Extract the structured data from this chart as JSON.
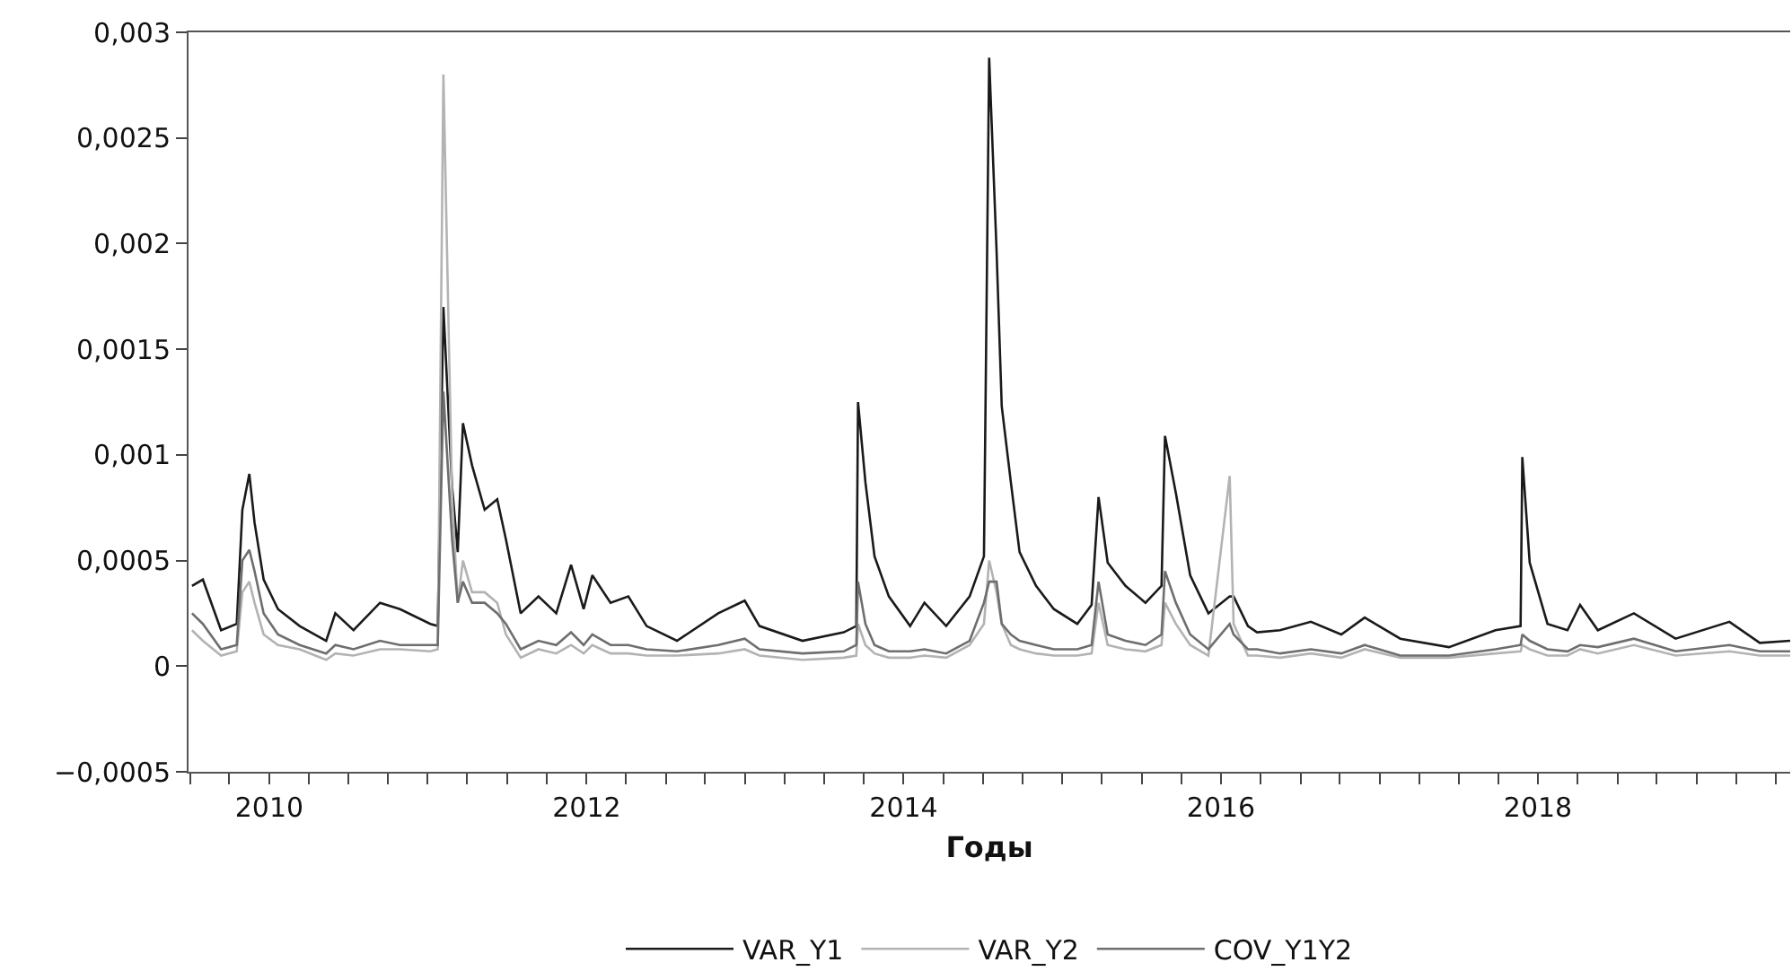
{
  "chart_data": {
    "type": "line",
    "xlabel": "Годы",
    "legend": "bottom",
    "grid": false,
    "marker": "none",
    "line_style": "solid",
    "xlim": [
      "2009-12-28",
      "2020-02-03"
    ],
    "ylim": [
      -0.0005,
      0.003
    ],
    "yticks": [
      {
        "value": -0.0005,
        "label": "−0,0005"
      },
      {
        "value": 0,
        "label": "0"
      },
      {
        "value": 0.0005,
        "label": "0,0005"
      },
      {
        "value": 0.001,
        "label": "0,001"
      },
      {
        "value": 0.0015,
        "label": "0,0015"
      },
      {
        "value": 0.002,
        "label": "0,002"
      },
      {
        "value": 0.0025,
        "label": "0,0025"
      },
      {
        "value": 0.003,
        "label": "0,003"
      }
    ],
    "xticks": [
      {
        "value": "2010-01-01",
        "label": null
      },
      {
        "value": "2010-04-01",
        "label": null
      },
      {
        "value": "2010-07-02",
        "label": "2010"
      },
      {
        "value": "2010-10-01",
        "label": null
      },
      {
        "value": "2011-01-01",
        "label": null
      },
      {
        "value": "2011-04-01",
        "label": null
      },
      {
        "value": "2011-07-02",
        "label": null
      },
      {
        "value": "2011-10-01",
        "label": null
      },
      {
        "value": "2012-01-01",
        "label": null
      },
      {
        "value": "2012-04-01",
        "label": null
      },
      {
        "value": "2012-07-02",
        "label": "2012"
      },
      {
        "value": "2012-10-01",
        "label": null
      },
      {
        "value": "2013-01-01",
        "label": null
      },
      {
        "value": "2013-04-01",
        "label": null
      },
      {
        "value": "2013-07-02",
        "label": null
      },
      {
        "value": "2013-10-01",
        "label": null
      },
      {
        "value": "2014-01-01",
        "label": null
      },
      {
        "value": "2014-04-01",
        "label": null
      },
      {
        "value": "2014-07-02",
        "label": "2014"
      },
      {
        "value": "2014-10-01",
        "label": null
      },
      {
        "value": "2015-01-01",
        "label": null
      },
      {
        "value": "2015-04-01",
        "label": null
      },
      {
        "value": "2015-07-02",
        "label": null
      },
      {
        "value": "2015-10-01",
        "label": null
      },
      {
        "value": "2016-01-01",
        "label": null
      },
      {
        "value": "2016-04-01",
        "label": null
      },
      {
        "value": "2016-07-02",
        "label": "2016"
      },
      {
        "value": "2016-10-01",
        "label": null
      },
      {
        "value": "2017-01-01",
        "label": null
      },
      {
        "value": "2017-04-01",
        "label": null
      },
      {
        "value": "2017-07-02",
        "label": null
      },
      {
        "value": "2017-10-01",
        "label": null
      },
      {
        "value": "2018-01-01",
        "label": null
      },
      {
        "value": "2018-04-01",
        "label": null
      },
      {
        "value": "2018-07-02",
        "label": "2018"
      },
      {
        "value": "2018-10-01",
        "label": null
      },
      {
        "value": "2019-01-01",
        "label": null
      },
      {
        "value": "2019-04-01",
        "label": null
      },
      {
        "value": "2019-07-02",
        "label": null
      },
      {
        "value": "2019-10-01",
        "label": null
      },
      {
        "value": "2020-01-01",
        "label": null
      }
    ],
    "x": [
      "2010-01-05",
      "2010-01-30",
      "2010-03-13",
      "2010-04-18",
      "2010-05-01",
      "2010-05-17",
      "2010-05-29",
      "2010-06-19",
      "2010-07-22",
      "2010-09-10",
      "2010-11-10",
      "2010-12-01",
      "2011-01-12",
      "2011-03-14",
      "2011-04-29",
      "2011-07-08",
      "2011-07-25",
      "2011-08-07",
      "2011-08-27",
      "2011-09-09",
      "2011-09-21",
      "2011-10-12",
      "2011-11-10",
      "2011-12-09",
      "2011-12-29",
      "2012-02-01",
      "2012-03-13",
      "2012-04-23",
      "2012-05-27",
      "2012-06-25",
      "2012-07-15",
      "2012-08-26",
      "2012-10-06",
      "2012-11-17",
      "2013-01-26",
      "2013-05-01",
      "2013-07-01",
      "2013-08-04",
      "2013-11-11",
      "2014-02-14",
      "2014-03-15",
      "2014-03-19",
      "2014-04-05",
      "2014-04-26",
      "2014-05-29",
      "2014-07-17",
      "2014-08-19",
      "2014-10-08",
      "2014-12-01",
      "2015-01-03",
      "2015-01-15",
      "2015-02-01",
      "2015-02-13",
      "2015-03-06",
      "2015-03-26",
      "2015-05-03",
      "2015-06-13",
      "2015-08-06",
      "2015-09-08",
      "2015-09-24",
      "2015-10-15",
      "2015-11-25",
      "2016-01-10",
      "2016-02-16",
      "2016-02-24",
      "2016-03-20",
      "2016-04-22",
      "2016-06-03",
      "2016-07-22",
      "2016-07-31",
      "2016-09-02",
      "2016-09-23",
      "2016-11-15",
      "2017-01-25",
      "2017-04-05",
      "2017-05-29",
      "2017-08-19",
      "2017-12-09",
      "2018-03-26",
      "2018-05-23",
      "2018-05-27",
      "2018-06-13",
      "2018-07-24",
      "2018-09-08",
      "2018-10-07",
      "2018-11-17",
      "2019-02-08",
      "2019-05-15",
      "2019-09-16",
      "2019-11-25",
      "2020-02-03"
    ],
    "series": [
      {
        "name": "VAR_Y1",
        "color": "#1a1a1a",
        "values": [
          0.00038,
          0.00041,
          0.00017,
          0.0002,
          0.00074,
          0.00091,
          0.00068,
          0.00041,
          0.00027,
          0.00019,
          0.00012,
          0.00025,
          0.00017,
          0.0003,
          0.00027,
          0.0002,
          0.00019,
          0.0017,
          0.00085,
          0.00054,
          0.00115,
          0.00095,
          0.00074,
          0.00079,
          0.0006,
          0.00025,
          0.00033,
          0.00025,
          0.00048,
          0.00027,
          0.00043,
          0.0003,
          0.00033,
          0.00019,
          0.00012,
          0.00025,
          0.00031,
          0.00019,
          0.00012,
          0.00016,
          0.00019,
          0.00125,
          0.00087,
          0.00052,
          0.00033,
          0.00019,
          0.0003,
          0.00019,
          0.00033,
          0.00052,
          0.00288,
          0.00197,
          0.00123,
          0.00087,
          0.00054,
          0.00038,
          0.00027,
          0.0002,
          0.00029,
          0.0008,
          0.00049,
          0.00038,
          0.0003,
          0.00038,
          0.00109,
          0.00082,
          0.00043,
          0.00025,
          0.00033,
          0.00033,
          0.00019,
          0.00016,
          0.00017,
          0.00021,
          0.00015,
          0.00023,
          0.00013,
          9e-05,
          0.00017,
          0.00019,
          0.00099,
          0.00049,
          0.0002,
          0.00017,
          0.00029,
          0.00017,
          0.00025,
          0.00013,
          0.00021,
          0.00011,
          0.00012
        ]
      },
      {
        "name": "VAR_Y2",
        "color": "#b3b3b3",
        "values": [
          0.00017,
          0.00012,
          5e-05,
          7e-05,
          0.00035,
          0.0004,
          0.0003,
          0.00015,
          0.0001,
          8e-05,
          3e-05,
          6e-05,
          5e-05,
          8e-05,
          8e-05,
          7e-05,
          8e-05,
          0.0028,
          0.0008,
          0.0003,
          0.0005,
          0.00035,
          0.00035,
          0.0003,
          0.00015,
          4e-05,
          8e-05,
          6e-05,
          0.0001,
          6e-05,
          0.0001,
          6e-05,
          6e-05,
          5e-05,
          5e-05,
          6e-05,
          8e-05,
          5e-05,
          3e-05,
          4e-05,
          5e-05,
          0.0002,
          0.0001,
          6e-05,
          4e-05,
          4e-05,
          5e-05,
          4e-05,
          0.0001,
          0.0002,
          0.0005,
          0.00035,
          0.0002,
          0.0001,
          8e-05,
          6e-05,
          5e-05,
          5e-05,
          6e-05,
          0.0003,
          0.0001,
          8e-05,
          7e-05,
          0.0001,
          0.0003,
          0.0002,
          0.0001,
          5e-05,
          0.0009,
          0.0002,
          5e-05,
          5e-05,
          4e-05,
          6e-05,
          4e-05,
          8e-05,
          4e-05,
          4e-05,
          6e-05,
          7e-05,
          0.0001,
          8e-05,
          5e-05,
          5e-05,
          8e-05,
          6e-05,
          0.0001,
          5e-05,
          7e-05,
          5e-05,
          5e-05
        ]
      },
      {
        "name": "COV_Y1Y2",
        "color": "#6e6e6e",
        "values": [
          0.00025,
          0.0002,
          8e-05,
          0.0001,
          0.0005,
          0.00055,
          0.00045,
          0.00025,
          0.00015,
          0.0001,
          6e-05,
          0.0001,
          8e-05,
          0.00012,
          0.0001,
          0.0001,
          0.0001,
          0.0013,
          0.0006,
          0.0003,
          0.0004,
          0.0003,
          0.0003,
          0.00025,
          0.0002,
          8e-05,
          0.00012,
          0.0001,
          0.00016,
          0.0001,
          0.00015,
          0.0001,
          0.0001,
          8e-05,
          7e-05,
          0.0001,
          0.00013,
          8e-05,
          6e-05,
          7e-05,
          0.0001,
          0.0004,
          0.0002,
          0.0001,
          7e-05,
          7e-05,
          8e-05,
          6e-05,
          0.00012,
          0.0003,
          0.0004,
          0.0004,
          0.0002,
          0.00015,
          0.00012,
          0.0001,
          8e-05,
          8e-05,
          0.0001,
          0.0004,
          0.00015,
          0.00012,
          0.0001,
          0.00015,
          0.00045,
          0.0003,
          0.00015,
          8e-05,
          0.0002,
          0.00015,
          8e-05,
          8e-05,
          6e-05,
          8e-05,
          6e-05,
          0.0001,
          5e-05,
          5e-05,
          8e-05,
          0.0001,
          0.00015,
          0.00012,
          8e-05,
          7e-05,
          0.0001,
          9e-05,
          0.00013,
          7e-05,
          0.0001,
          7e-05,
          7e-05
        ]
      }
    ]
  }
}
